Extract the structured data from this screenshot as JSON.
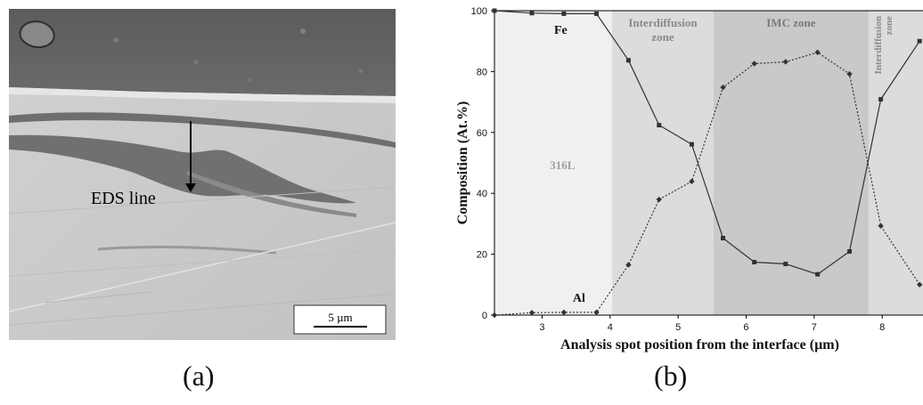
{
  "panel_a": {
    "caption": "(a)",
    "eds_label": "EDS line",
    "scale_bar_label": "5 µm"
  },
  "panel_b": {
    "caption": "(b)"
  },
  "chart_data": {
    "type": "line",
    "xlabel": "Analysis spot position from the interface (µm)",
    "ylabel": "Composition (At.%)",
    "xlim": [
      2.3,
      8.6
    ],
    "ylim": [
      0,
      100
    ],
    "x_ticks": [
      3,
      4,
      5,
      6,
      7,
      8
    ],
    "y_ticks": [
      0,
      20,
      40,
      60,
      80,
      100
    ],
    "grid": false,
    "zones": [
      {
        "label": "316L",
        "x_from": 2.3,
        "x_to": 4.03,
        "shade": "#f0f0f0",
        "label_color": "#a0a0a0"
      },
      {
        "label": "Interdiffusion zone",
        "x_from": 4.03,
        "x_to": 5.52,
        "shade": "#dcdcdc",
        "label_color": "#8a8a8a"
      },
      {
        "label": "IMC zone",
        "x_from": 5.52,
        "x_to": 7.8,
        "shade": "#c9c9c9",
        "label_color": "#7a7a7a"
      },
      {
        "label": "Interdiffusion zone",
        "x_from": 7.8,
        "x_to": 8.6,
        "shade": "#dcdcdc",
        "label_color": "#8a8a8a"
      }
    ],
    "series": [
      {
        "name": "Fe",
        "style": "solid",
        "marker": "square",
        "color": "#333333",
        "points": [
          [
            2.3,
            100
          ],
          [
            2.85,
            99.2
          ],
          [
            3.32,
            99
          ],
          [
            3.8,
            99
          ],
          [
            4.27,
            83.7
          ],
          [
            4.72,
            62.4
          ],
          [
            5.2,
            56.1
          ],
          [
            5.66,
            25.3
          ],
          [
            6.12,
            17.4
          ],
          [
            6.58,
            16.8
          ],
          [
            7.05,
            13.4
          ],
          [
            7.52,
            20.9
          ],
          [
            7.98,
            70.9
          ],
          [
            8.55,
            90
          ]
        ]
      },
      {
        "name": "Al",
        "style": "dotted",
        "marker": "diamond",
        "color": "#333333",
        "points": [
          [
            2.3,
            0
          ],
          [
            2.85,
            0.8
          ],
          [
            3.32,
            0.9
          ],
          [
            3.8,
            0.9
          ],
          [
            4.27,
            16.5
          ],
          [
            4.72,
            38
          ],
          [
            5.2,
            43.9
          ],
          [
            5.66,
            74.8
          ],
          [
            6.12,
            82.6
          ],
          [
            6.58,
            83.2
          ],
          [
            7.05,
            86.3
          ],
          [
            7.52,
            79.2
          ],
          [
            7.98,
            29.3
          ],
          [
            8.55,
            10
          ]
        ]
      }
    ]
  }
}
